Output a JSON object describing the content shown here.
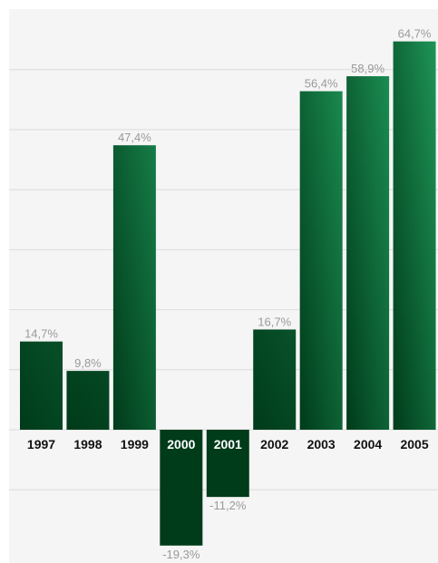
{
  "chart_data": {
    "type": "bar",
    "categories": [
      "1997",
      "1998",
      "1999",
      "2000",
      "2001",
      "2002",
      "2003",
      "2004",
      "2005"
    ],
    "values": [
      14.7,
      9.8,
      47.4,
      -19.3,
      -11.2,
      16.7,
      56.4,
      58.9,
      64.7
    ],
    "value_labels": [
      "14,7%",
      "9,8%",
      "47,4%",
      "-19,3%",
      "-11,2%",
      "16,7%",
      "56,4%",
      "58,9%",
      "64,7%"
    ],
    "ylim": [
      -22,
      67
    ],
    "gridlines": [
      -10,
      0,
      10,
      20,
      30,
      40,
      50,
      60
    ],
    "grid": true,
    "colors": {
      "dark": "#003b1a",
      "light": "#1e9457",
      "value_label": "#9a9a9a",
      "category_label_on_light": "#111111",
      "category_label_on_dark": "#ffffff",
      "background": "#f5f5f5"
    }
  }
}
